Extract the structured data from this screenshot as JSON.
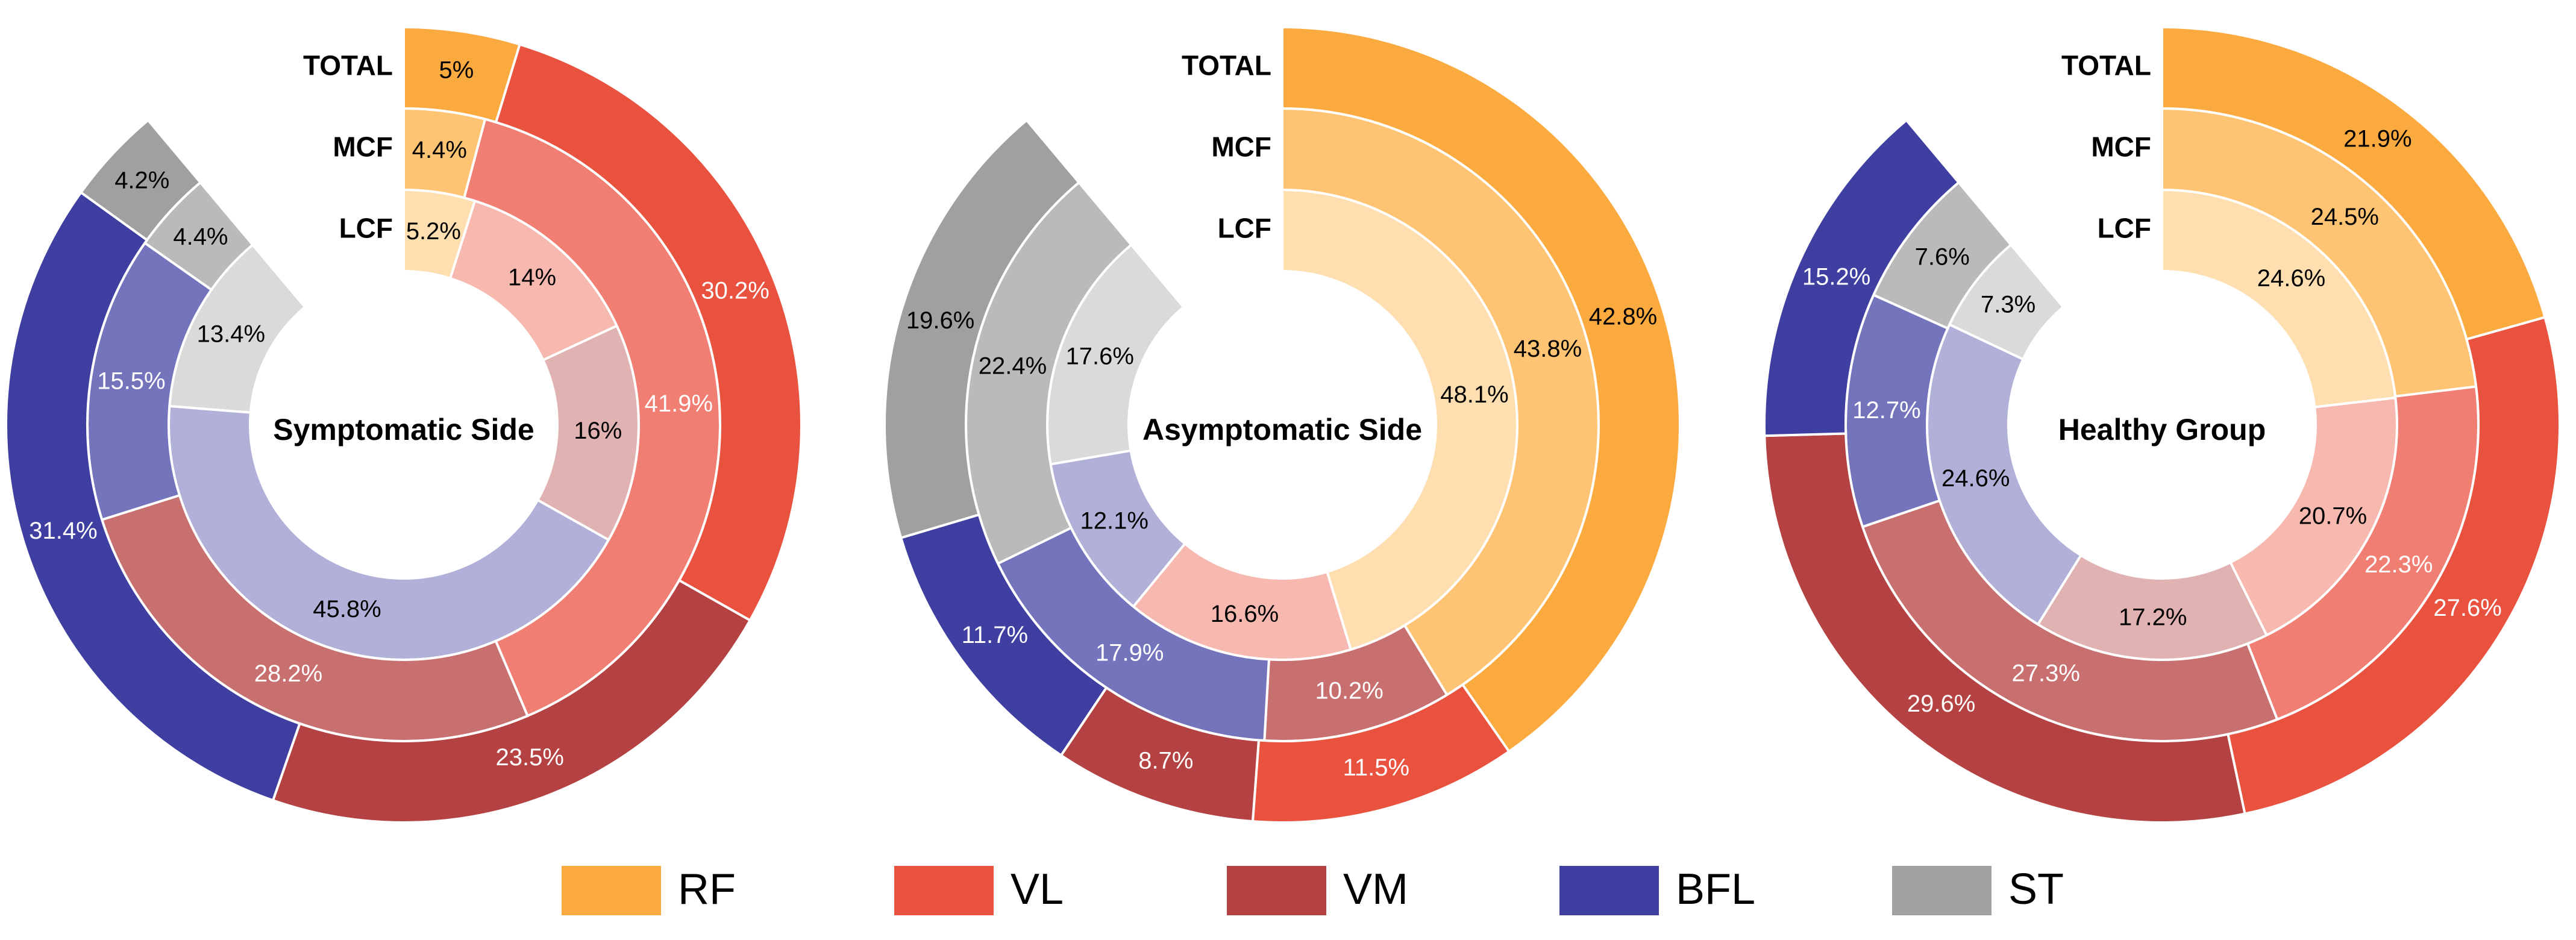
{
  "chart_data": [
    {
      "type": "pie",
      "subtype": "nested-donut",
      "title": "Symptomatic Side",
      "ring_order_inner_to_outer": [
        "LCF",
        "MCF",
        "TOTAL"
      ],
      "categories": [
        "RF",
        "VL",
        "VM",
        "BFL",
        "ST"
      ],
      "series": [
        {
          "name": "TOTAL",
          "values": [
            5,
            30.2,
            23.5,
            31.4,
            4.2
          ],
          "labels": [
            "5%",
            "30.2%",
            "23.5%",
            "31.4%",
            "4.2%"
          ]
        },
        {
          "name": "MCF",
          "values": [
            4.4,
            41.9,
            28.2,
            15.5,
            4.4
          ],
          "labels": [
            "4.4%",
            "41.9%",
            "28.2%",
            "15.5%",
            "4.4%"
          ]
        },
        {
          "name": "LCF",
          "values": [
            5.2,
            14,
            16,
            45.8,
            13.4
          ],
          "labels": [
            "5.2%",
            "14%",
            "16%",
            "45.8%",
            "13.4%"
          ]
        }
      ]
    },
    {
      "type": "pie",
      "subtype": "nested-donut",
      "title": "Asymptomatic Side",
      "ring_order_inner_to_outer": [
        "LCF",
        "MCF",
        "TOTAL"
      ],
      "categories": [
        "RF",
        "VL",
        "VM",
        "BFL",
        "ST"
      ],
      "series": [
        {
          "name": "TOTAL",
          "values": [
            42.8,
            11.5,
            8.7,
            11.7,
            19.6
          ],
          "labels": [
            "42.8%",
            "11.5%",
            "8.7%",
            "11.7%",
            "19.6%"
          ]
        },
        {
          "name": "MCF",
          "values": [
            43.8,
            0,
            10.2,
            17.9,
            22.4
          ],
          "labels": [
            "43.8%",
            "",
            "10.2%",
            "17.9%",
            "22.4%"
          ]
        },
        {
          "name": "LCF",
          "values": [
            48.1,
            16.6,
            0,
            12.1,
            17.6
          ],
          "labels": [
            "48.1%",
            "16.6%",
            "",
            "12.1%",
            "17.6%"
          ]
        }
      ]
    },
    {
      "type": "pie",
      "subtype": "nested-donut",
      "title": "Healthy Group",
      "ring_order_inner_to_outer": [
        "LCF",
        "MCF",
        "TOTAL"
      ],
      "categories": [
        "RF",
        "VL",
        "VM",
        "BFL",
        "ST"
      ],
      "series": [
        {
          "name": "TOTAL",
          "values": [
            21.9,
            27.6,
            29.6,
            15.2,
            0
          ],
          "labels": [
            "21.9%",
            "27.6%",
            "29.6%",
            "15.2%",
            ""
          ]
        },
        {
          "name": "MCF",
          "values": [
            24.5,
            22.3,
            27.3,
            12.7,
            7.6
          ],
          "labels": [
            "24.5%",
            "22.3%",
            "27.3%",
            "12.7%",
            "7.6%"
          ]
        },
        {
          "name": "LCF",
          "values": [
            24.6,
            20.7,
            17.2,
            24.6,
            7.3
          ],
          "labels": [
            "24.6%",
            "20.7%",
            "17.2%",
            "24.6%",
            "7.3%"
          ]
        }
      ]
    }
  ],
  "legend": {
    "placement": "bottom",
    "items": [
      {
        "label": "RF",
        "color": "#FBAA40"
      },
      {
        "label": "VL",
        "color": "#EA5240"
      },
      {
        "label": "VM",
        "color": "#B44242"
      },
      {
        "label": "BFL",
        "color": "#3E3FA0"
      },
      {
        "label": "ST",
        "color": "#A0A0A0"
      }
    ]
  },
  "ring_colors": {
    "TOTAL": [
      "#FBAA40",
      "#EA5240",
      "#B44242",
      "#3E3FA0",
      "#A0A0A0"
    ],
    "MCF": [
      "#FFC473",
      "#F07E72",
      "#C87070",
      "#7474BC",
      "#BABABA"
    ],
    "LCF": [
      "#FFDEB0",
      "#F7B8B0",
      "#E0B2B2",
      "#B0B0D8",
      "#DADADA"
    ]
  },
  "label_colors": {
    "TOTAL": [
      "#000000",
      "#FFFFFF",
      "#FFFFFF",
      "#FFFFFF",
      "#000000"
    ],
    "MCF": [
      "#000000",
      "#FFFFFF",
      "#FFFFFF",
      "#FFFFFF",
      "#000000"
    ],
    "LCF": [
      "#000000",
      "#000000",
      "#000000",
      "#000000",
      "#000000"
    ]
  }
}
